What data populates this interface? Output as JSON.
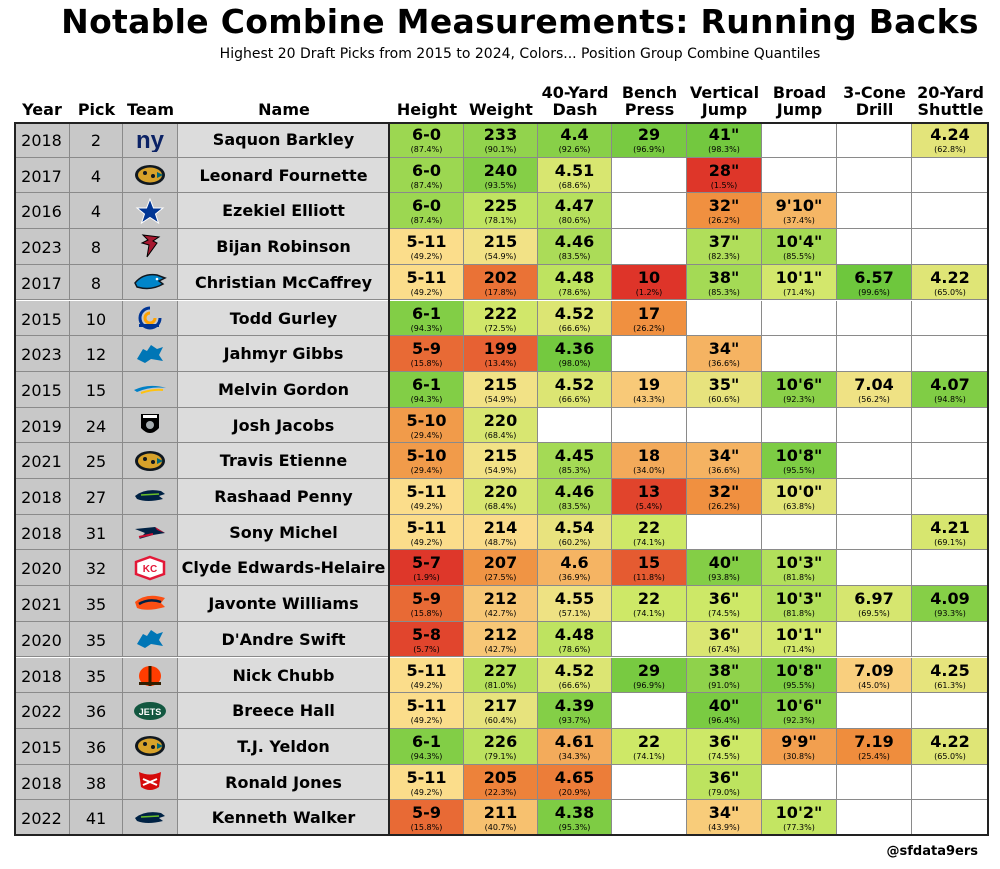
{
  "title": "Notable Combine Measurements: Running Backs",
  "subtitle": "Highest 20 Draft Picks from 2015 to 2024, Colors... Position Group Combine Quantiles",
  "credit": "@sfdata9ers",
  "chart_data": {
    "type": "table",
    "columns": [
      "Year",
      "Pick",
      "Team",
      "Name",
      "Height",
      "Weight",
      "40-Yard Dash",
      "Bench Press",
      "Vertical Jump",
      "Broad Jump",
      "3-Cone Drill",
      "20-Yard Shuttle"
    ],
    "header_lines": [
      [
        "Year"
      ],
      [
        "Pick"
      ],
      [
        "Team"
      ],
      [
        "Name"
      ],
      [
        "Height"
      ],
      [
        "Weight"
      ],
      [
        "40-Yard",
        "Dash"
      ],
      [
        "Bench",
        "Press"
      ],
      [
        "Vertical",
        "Jump"
      ],
      [
        "Broad",
        "Jump"
      ],
      [
        "3-Cone",
        "Drill"
      ],
      [
        "20-Yard",
        "Shuttle"
      ]
    ],
    "metric_keys": [
      "height",
      "weight",
      "forty",
      "bench",
      "vertical",
      "broad",
      "cone",
      "shuttle"
    ],
    "rows": [
      {
        "year": "2018",
        "pick": "2",
        "team": "nyg",
        "name": "Saquon Barkley",
        "height": [
          "6-0",
          "87.4%"
        ],
        "weight": [
          "233",
          "90.1%"
        ],
        "forty": [
          "4.4",
          "92.6%"
        ],
        "bench": [
          "29",
          "96.9%"
        ],
        "vertical": [
          "41\"",
          "98.3%"
        ],
        "broad": null,
        "cone": null,
        "shuttle": [
          "4.24",
          "62.8%"
        ]
      },
      {
        "year": "2017",
        "pick": "4",
        "team": "jax",
        "name": "Leonard Fournette",
        "height": [
          "6-0",
          "87.4%"
        ],
        "weight": [
          "240",
          "93.5%"
        ],
        "forty": [
          "4.51",
          "68.6%"
        ],
        "bench": null,
        "vertical": [
          "28\"",
          "1.5%"
        ],
        "broad": null,
        "cone": null,
        "shuttle": null
      },
      {
        "year": "2016",
        "pick": "4",
        "team": "dal",
        "name": "Ezekiel Elliott",
        "height": [
          "6-0",
          "87.4%"
        ],
        "weight": [
          "225",
          "78.1%"
        ],
        "forty": [
          "4.47",
          "80.6%"
        ],
        "bench": null,
        "vertical": [
          "32\"",
          "26.2%"
        ],
        "broad": [
          "9'10\"",
          "37.4%"
        ],
        "cone": null,
        "shuttle": null
      },
      {
        "year": "2023",
        "pick": "8",
        "team": "atl",
        "name": "Bijan Robinson",
        "height": [
          "5-11",
          "49.2%"
        ],
        "weight": [
          "215",
          "54.9%"
        ],
        "forty": [
          "4.46",
          "83.5%"
        ],
        "bench": null,
        "vertical": [
          "37\"",
          "82.3%"
        ],
        "broad": [
          "10'4\"",
          "85.5%"
        ],
        "cone": null,
        "shuttle": null
      },
      {
        "year": "2017",
        "pick": "8",
        "team": "car",
        "name": "Christian McCaffrey",
        "height": [
          "5-11",
          "49.2%"
        ],
        "weight": [
          "202",
          "17.8%"
        ],
        "forty": [
          "4.48",
          "78.6%"
        ],
        "bench": [
          "10",
          "1.2%"
        ],
        "vertical": [
          "38\"",
          "85.3%"
        ],
        "broad": [
          "10'1\"",
          "71.4%"
        ],
        "cone": [
          "6.57",
          "99.6%"
        ],
        "shuttle": [
          "4.22",
          "65.0%"
        ]
      },
      {
        "year": "2015",
        "pick": "10",
        "team": "lar",
        "name": "Todd Gurley",
        "height": [
          "6-1",
          "94.3%"
        ],
        "weight": [
          "222",
          "72.5%"
        ],
        "forty": [
          "4.52",
          "66.6%"
        ],
        "bench": [
          "17",
          "26.2%"
        ],
        "vertical": null,
        "broad": null,
        "cone": null,
        "shuttle": null
      },
      {
        "year": "2023",
        "pick": "12",
        "team": "det",
        "name": "Jahmyr Gibbs",
        "height": [
          "5-9",
          "15.8%"
        ],
        "weight": [
          "199",
          "13.4%"
        ],
        "forty": [
          "4.36",
          "98.0%"
        ],
        "bench": null,
        "vertical": [
          "34\"",
          "36.6%"
        ],
        "broad": null,
        "cone": null,
        "shuttle": null
      },
      {
        "year": "2015",
        "pick": "15",
        "team": "lac",
        "name": "Melvin Gordon",
        "height": [
          "6-1",
          "94.3%"
        ],
        "weight": [
          "215",
          "54.9%"
        ],
        "forty": [
          "4.52",
          "66.6%"
        ],
        "bench": [
          "19",
          "43.3%"
        ],
        "vertical": [
          "35\"",
          "60.6%"
        ],
        "broad": [
          "10'6\"",
          "92.3%"
        ],
        "cone": [
          "7.04",
          "56.2%"
        ],
        "shuttle": [
          "4.07",
          "94.8%"
        ]
      },
      {
        "year": "2019",
        "pick": "24",
        "team": "lv",
        "name": "Josh Jacobs",
        "height": [
          "5-10",
          "29.4%"
        ],
        "weight": [
          "220",
          "68.4%"
        ],
        "forty": null,
        "bench": null,
        "vertical": null,
        "broad": null,
        "cone": null,
        "shuttle": null
      },
      {
        "year": "2021",
        "pick": "25",
        "team": "jax",
        "name": "Travis Etienne",
        "height": [
          "5-10",
          "29.4%"
        ],
        "weight": [
          "215",
          "54.9%"
        ],
        "forty": [
          "4.45",
          "85.3%"
        ],
        "bench": [
          "18",
          "34.0%"
        ],
        "vertical": [
          "34\"",
          "36.6%"
        ],
        "broad": [
          "10'8\"",
          "95.5%"
        ],
        "cone": null,
        "shuttle": null
      },
      {
        "year": "2018",
        "pick": "27",
        "team": "sea",
        "name": "Rashaad Penny",
        "height": [
          "5-11",
          "49.2%"
        ],
        "weight": [
          "220",
          "68.4%"
        ],
        "forty": [
          "4.46",
          "83.5%"
        ],
        "bench": [
          "13",
          "5.4%"
        ],
        "vertical": [
          "32\"",
          "26.2%"
        ],
        "broad": [
          "10'0\"",
          "63.8%"
        ],
        "cone": null,
        "shuttle": null
      },
      {
        "year": "2018",
        "pick": "31",
        "team": "ne",
        "name": "Sony Michel",
        "height": [
          "5-11",
          "49.2%"
        ],
        "weight": [
          "214",
          "48.7%"
        ],
        "forty": [
          "4.54",
          "60.2%"
        ],
        "bench": [
          "22",
          "74.1%"
        ],
        "vertical": null,
        "broad": null,
        "cone": null,
        "shuttle": [
          "4.21",
          "69.1%"
        ]
      },
      {
        "year": "2020",
        "pick": "32",
        "team": "kc",
        "name": "Clyde Edwards-Helaire",
        "height": [
          "5-7",
          "1.9%"
        ],
        "weight": [
          "207",
          "27.5%"
        ],
        "forty": [
          "4.6",
          "36.9%"
        ],
        "bench": [
          "15",
          "11.8%"
        ],
        "vertical": [
          "40\"",
          "93.8%"
        ],
        "broad": [
          "10'3\"",
          "81.8%"
        ],
        "cone": null,
        "shuttle": null
      },
      {
        "year": "2021",
        "pick": "35",
        "team": "den",
        "name": "Javonte Williams",
        "height": [
          "5-9",
          "15.8%"
        ],
        "weight": [
          "212",
          "42.7%"
        ],
        "forty": [
          "4.55",
          "57.1%"
        ],
        "bench": [
          "22",
          "74.1%"
        ],
        "vertical": [
          "36\"",
          "74.5%"
        ],
        "broad": [
          "10'3\"",
          "81.8%"
        ],
        "cone": [
          "6.97",
          "69.5%"
        ],
        "shuttle": [
          "4.09",
          "93.3%"
        ]
      },
      {
        "year": "2020",
        "pick": "35",
        "team": "det",
        "name": "D'Andre Swift",
        "height": [
          "5-8",
          "5.7%"
        ],
        "weight": [
          "212",
          "42.7%"
        ],
        "forty": [
          "4.48",
          "78.6%"
        ],
        "bench": null,
        "vertical": [
          "36\"",
          "67.4%"
        ],
        "broad": [
          "10'1\"",
          "71.4%"
        ],
        "cone": null,
        "shuttle": null
      },
      {
        "year": "2018",
        "pick": "35",
        "team": "cle",
        "name": "Nick Chubb",
        "height": [
          "5-11",
          "49.2%"
        ],
        "weight": [
          "227",
          "81.0%"
        ],
        "forty": [
          "4.52",
          "66.6%"
        ],
        "bench": [
          "29",
          "96.9%"
        ],
        "vertical": [
          "38\"",
          "91.0%"
        ],
        "broad": [
          "10'8\"",
          "95.5%"
        ],
        "cone": [
          "7.09",
          "45.0%"
        ],
        "shuttle": [
          "4.25",
          "61.3%"
        ]
      },
      {
        "year": "2022",
        "pick": "36",
        "team": "nyj",
        "name": "Breece Hall",
        "height": [
          "5-11",
          "49.2%"
        ],
        "weight": [
          "217",
          "60.4%"
        ],
        "forty": [
          "4.39",
          "93.7%"
        ],
        "bench": null,
        "vertical": [
          "40\"",
          "96.4%"
        ],
        "broad": [
          "10'6\"",
          "92.3%"
        ],
        "cone": null,
        "shuttle": null
      },
      {
        "year": "2015",
        "pick": "36",
        "team": "jax",
        "name": "T.J. Yeldon",
        "height": [
          "6-1",
          "94.3%"
        ],
        "weight": [
          "226",
          "79.1%"
        ],
        "forty": [
          "4.61",
          "34.3%"
        ],
        "bench": [
          "22",
          "74.1%"
        ],
        "vertical": [
          "36\"",
          "74.5%"
        ],
        "broad": [
          "9'9\"",
          "30.8%"
        ],
        "cone": [
          "7.19",
          "25.4%"
        ],
        "shuttle": [
          "4.22",
          "65.0%"
        ]
      },
      {
        "year": "2018",
        "pick": "38",
        "team": "tb",
        "name": "Ronald Jones",
        "height": [
          "5-11",
          "49.2%"
        ],
        "weight": [
          "205",
          "22.3%"
        ],
        "forty": [
          "4.65",
          "20.9%"
        ],
        "bench": null,
        "vertical": [
          "36\"",
          "79.0%"
        ],
        "broad": null,
        "cone": null,
        "shuttle": null
      },
      {
        "year": "2022",
        "pick": "41",
        "team": "sea",
        "name": "Kenneth Walker",
        "height": [
          "5-9",
          "15.8%"
        ],
        "weight": [
          "211",
          "40.7%"
        ],
        "forty": [
          "4.38",
          "95.3%"
        ],
        "bench": null,
        "vertical": [
          "34\"",
          "43.9%"
        ],
        "broad": [
          "10'2\"",
          "77.3%"
        ],
        "cone": null,
        "shuttle": null
      }
    ],
    "colors": {
      "empty": "#ffffff",
      "info_cell": "#c8c8c8",
      "name_cell": "#dcdcdc",
      "gridline": "#8a8a8a",
      "scale": [
        "#dd3028",
        "#ef8c3c",
        "#fbe08e",
        "#cce866",
        "#6cc63c"
      ]
    }
  }
}
